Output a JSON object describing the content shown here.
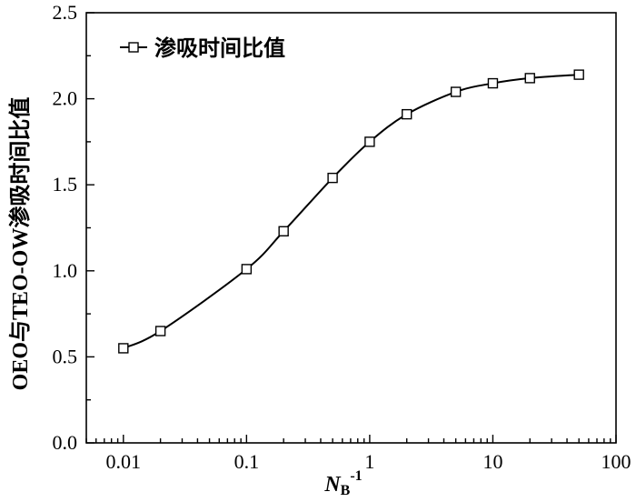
{
  "chart_data": {
    "type": "line",
    "xscale": "log",
    "xlim": [
      0.005,
      100
    ],
    "ylim": [
      0.0,
      2.5
    ],
    "xticks": [
      0.01,
      0.1,
      1,
      10,
      100
    ],
    "xtick_labels": [
      "0.01",
      "0.1",
      "1",
      "10",
      "100"
    ],
    "yticks": [
      0.0,
      0.5,
      1.0,
      1.5,
      2.0,
      2.5
    ],
    "ytick_labels": [
      "0.0",
      "0.5",
      "1.0",
      "1.5",
      "2.0",
      "2.5"
    ],
    "xlabel_main": "N",
    "xlabel_sub": "B",
    "xlabel_sup": "-1",
    "ylabel": "OEO与TEO-OW渗吸时间比值",
    "legend": {
      "position": "top-left",
      "entries": [
        "渗吸时间比值"
      ]
    },
    "grid": false,
    "series": [
      {
        "name": "渗吸时间比值",
        "marker": "square-open",
        "color": "#000000",
        "x": [
          0.01,
          0.02,
          0.1,
          0.2,
          0.5,
          1,
          2,
          5,
          10,
          20,
          50
        ],
        "y": [
          0.55,
          0.65,
          1.01,
          1.23,
          1.54,
          1.75,
          1.91,
          2.04,
          2.09,
          2.12,
          2.14
        ]
      }
    ]
  }
}
